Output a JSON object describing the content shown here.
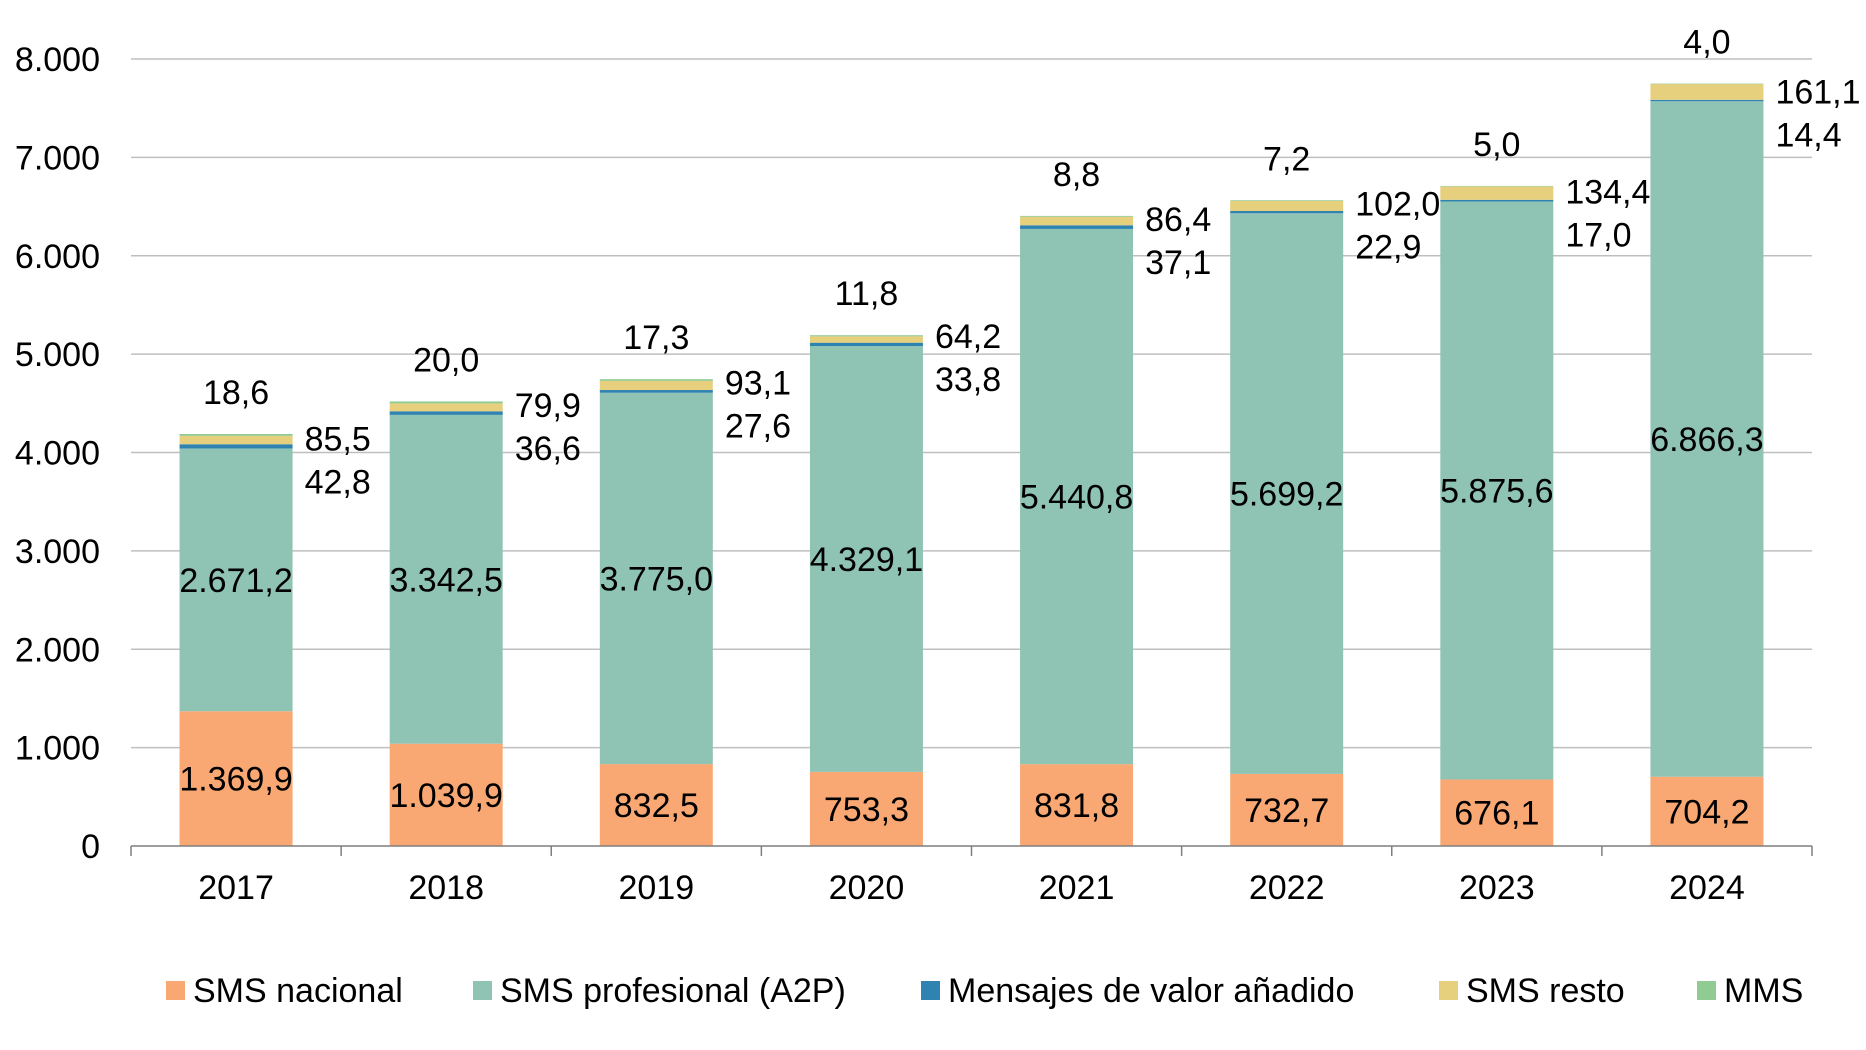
{
  "chart_data": {
    "type": "bar",
    "stacked": true,
    "categories": [
      "2017",
      "2018",
      "2019",
      "2020",
      "2021",
      "2022",
      "2023",
      "2024"
    ],
    "ylim": [
      0,
      8000
    ],
    "yticks": [
      0,
      1000,
      2000,
      3000,
      4000,
      5000,
      6000,
      7000,
      8000
    ],
    "ytick_labels": [
      "0",
      "1.000",
      "2.000",
      "3.000",
      "4.000",
      "5.000",
      "6.000",
      "7.000",
      "8.000"
    ],
    "grid": true,
    "legend_position": "bottom",
    "series": [
      {
        "name": "SMS nacional",
        "color": "#F9A873",
        "values": [
          1369.9,
          1039.9,
          832.5,
          753.3,
          831.8,
          732.7,
          676.1,
          704.2
        ],
        "labels": [
          "1.369,9",
          "1.039,9",
          "832,5",
          "753,3",
          "831,8",
          "732,7",
          "676,1",
          "704,2"
        ]
      },
      {
        "name": "SMS profesional (A2P)",
        "color": "#8FC3B4",
        "values": [
          2671.2,
          3342.5,
          3775.0,
          4329.1,
          5440.8,
          5699.2,
          5875.6,
          6866.3
        ],
        "labels": [
          "2.671,2",
          "3.342,5",
          "3.775,0",
          "4.329,1",
          "5.440,8",
          "5.699,2",
          "5.875,6",
          "6.866,3"
        ]
      },
      {
        "name": "Mensajes de valor añadido",
        "color": "#2E83B1",
        "values": [
          42.8,
          36.6,
          27.6,
          33.8,
          37.1,
          22.9,
          17.0,
          14.4
        ],
        "labels": [
          "42,8",
          "36,6",
          "27,6",
          "33,8",
          "37,1",
          "22,9",
          "17,0",
          "14,4"
        ]
      },
      {
        "name": "SMS resto",
        "color": "#E6D07E",
        "values": [
          85.5,
          79.9,
          93.1,
          64.2,
          86.4,
          102.0,
          134.4,
          161.1
        ],
        "labels": [
          "85,5",
          "79,9",
          "93,1",
          "64,2",
          "86,4",
          "102,0",
          "134,4",
          "161,1"
        ]
      },
      {
        "name": "MMS",
        "color": "#90CB92",
        "values": [
          18.6,
          20.0,
          17.3,
          11.8,
          8.8,
          7.2,
          5.0,
          4.0
        ],
        "labels": [
          "18,6",
          "20,0",
          "17,3",
          "11,8",
          "8,8",
          "7,2",
          "5,0",
          "4,0"
        ]
      }
    ]
  }
}
